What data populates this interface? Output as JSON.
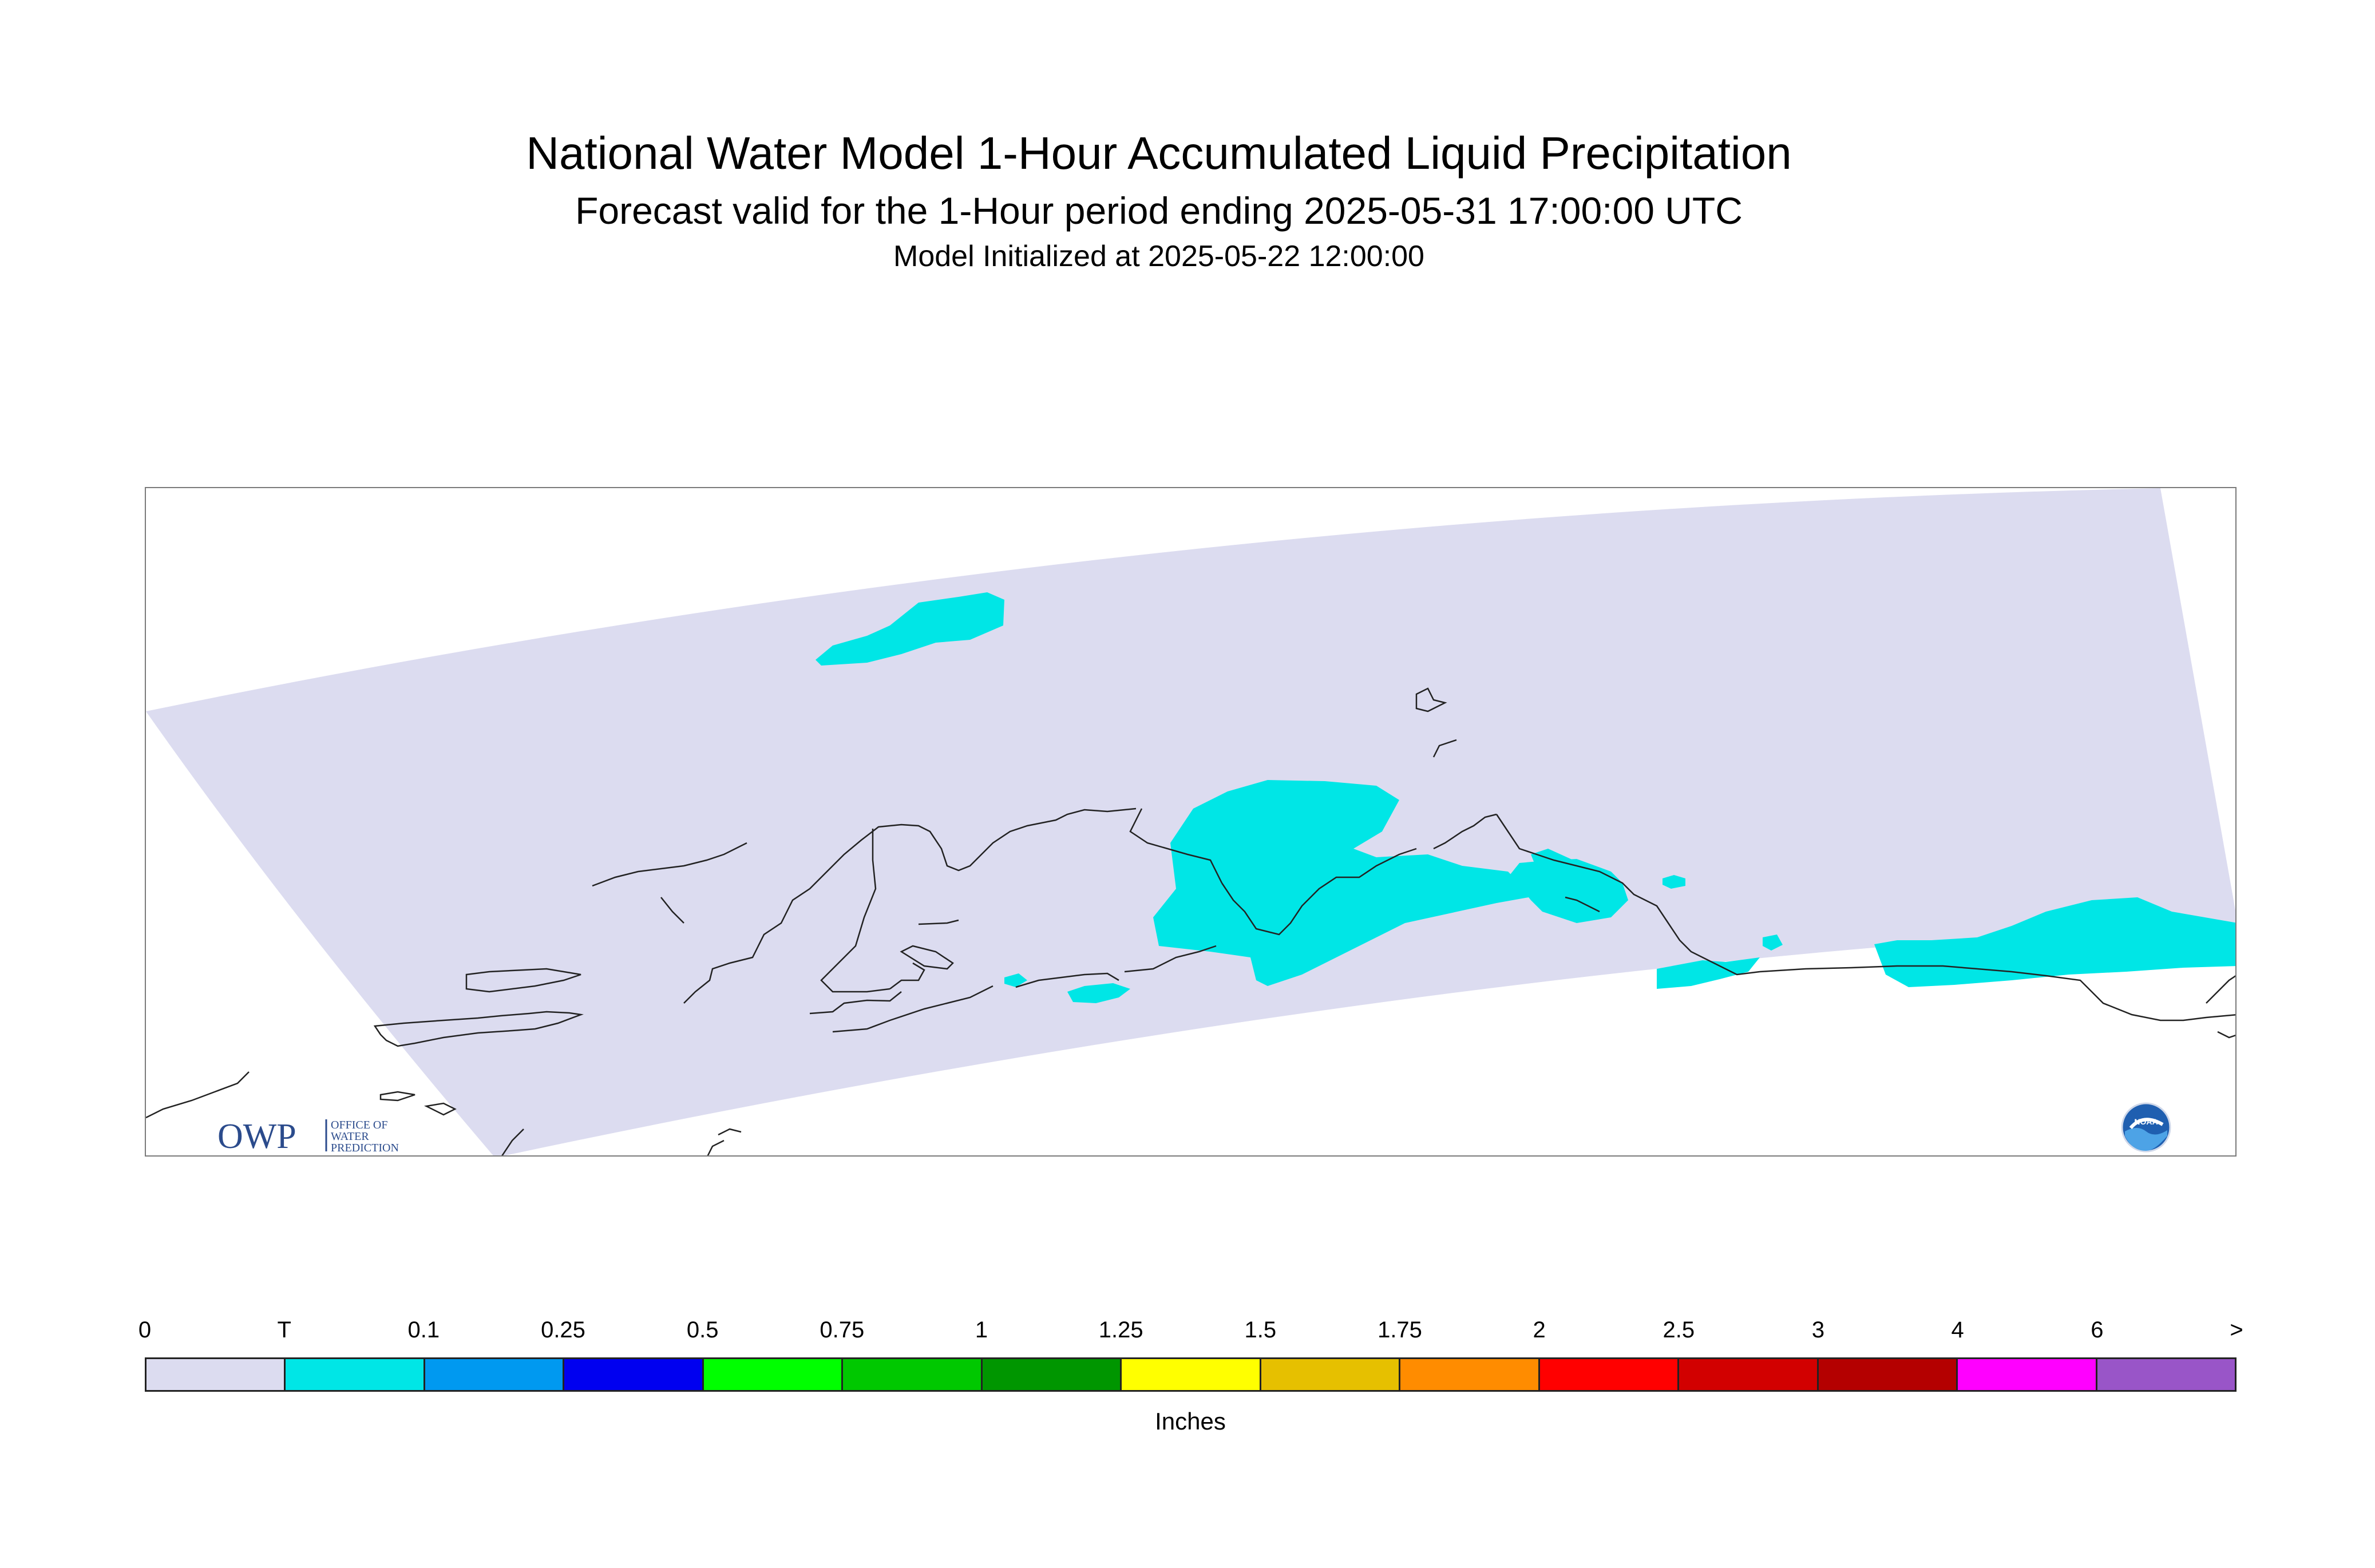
{
  "header": {
    "title": "National Water Model 1-Hour Accumulated Liquid Precipitation",
    "subtitle": "Forecast valid for the 1-Hour period ending 2025-05-31 17:00:00 UTC",
    "init": "Model Initialized at 2025-05-22 12:00:00"
  },
  "logos": {
    "owp_mark": "OWP",
    "owp_line1": "OFFICE OF",
    "owp_line2": "WATER",
    "owp_line3": "PREDICTION",
    "noaa": "NOAA"
  },
  "colors": {
    "domain": "#dcdcf0",
    "precip": "#00e6e6",
    "coast": "#222222",
    "owp_blue": "#2b4b8c"
  },
  "legend": {
    "unit": "Inches",
    "labels": [
      "0",
      "T",
      "0.1",
      "0.25",
      "0.5",
      "0.75",
      "1",
      "1.25",
      "1.5",
      "1.75",
      "2",
      "2.5",
      "3",
      "4",
      "6",
      ">"
    ],
    "colors": [
      "#dcdcf0",
      "#00e6e6",
      "#0099f0",
      "#0000f0",
      "#00ff00",
      "#00c800",
      "#009600",
      "#ffff00",
      "#e6c000",
      "#ff8c00",
      "#ff0000",
      "#d20000",
      "#b40000",
      "#ff00ff",
      "#9955c8"
    ]
  }
}
